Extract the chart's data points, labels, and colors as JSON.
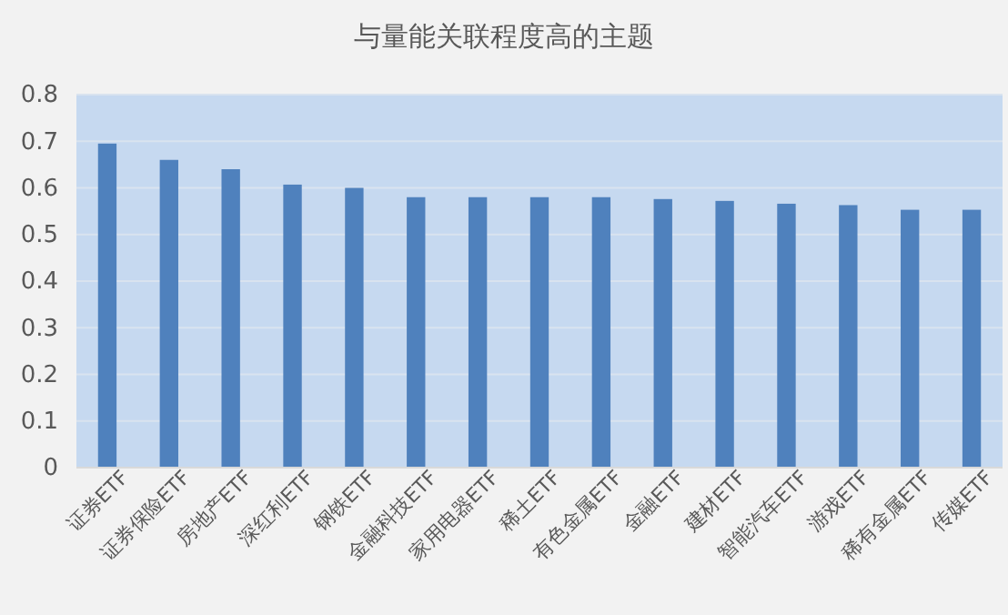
{
  "chart_data": {
    "type": "bar",
    "title": "与量能关联程度高的主题",
    "categories": [
      "证券ETF",
      "证券保险ETF",
      "房地产ETF",
      "深红利ETF",
      "钢铁ETF",
      "金融科技ETF",
      "家用电器ETF",
      "稀土ETF",
      "有色金属ETF",
      "金融ETF",
      "建材ETF",
      "智能汽车ETF",
      "游戏ETF",
      "稀有金属ETF",
      "传媒ETF"
    ],
    "values": [
      0.695,
      0.66,
      0.64,
      0.607,
      0.6,
      0.58,
      0.58,
      0.58,
      0.58,
      0.576,
      0.572,
      0.566,
      0.563,
      0.553,
      0.553
    ],
    "color": "#4f81bd",
    "ylim": [
      0,
      0.8
    ],
    "yticks": [
      0,
      0.1,
      0.2,
      0.3,
      0.4,
      0.5,
      0.6,
      0.7,
      0.8
    ],
    "grid": "y"
  }
}
